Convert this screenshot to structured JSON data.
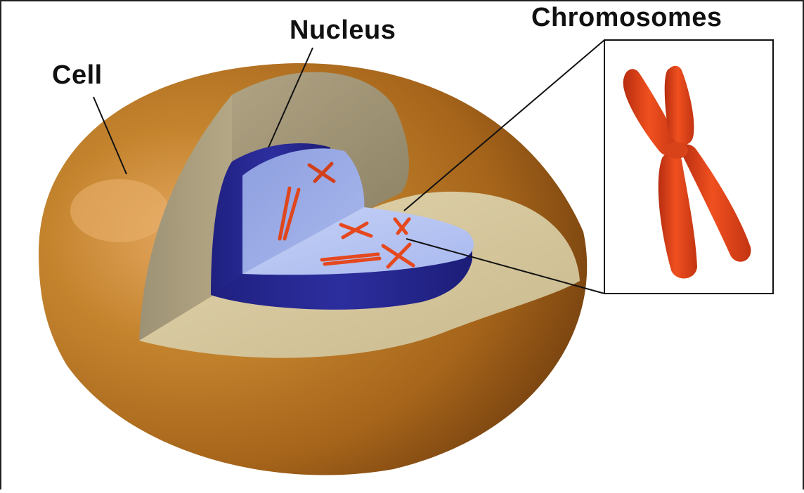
{
  "labels": {
    "cell": "Cell",
    "nucleus": "Nucleus",
    "chromosomes": "Chromosomes"
  },
  "colors": {
    "cell_outer": "#a8661c",
    "cell_highlight": "#e2a560",
    "cell_dark": "#6e3f10",
    "cytoplasm_cut": "#b9ab84",
    "cytoplasm_floor": "#d8c9a0",
    "nucleus_outer": "#2b2b95",
    "nucleus_inner": "#9fb0e8",
    "nucleus_inner_light": "#bccaf3",
    "chromosome": "#e8401c",
    "chromosome_dark": "#a82a10",
    "leader_line": "#111111"
  },
  "icons": {
    "zoom_chromosome": "chromosome-icon"
  }
}
